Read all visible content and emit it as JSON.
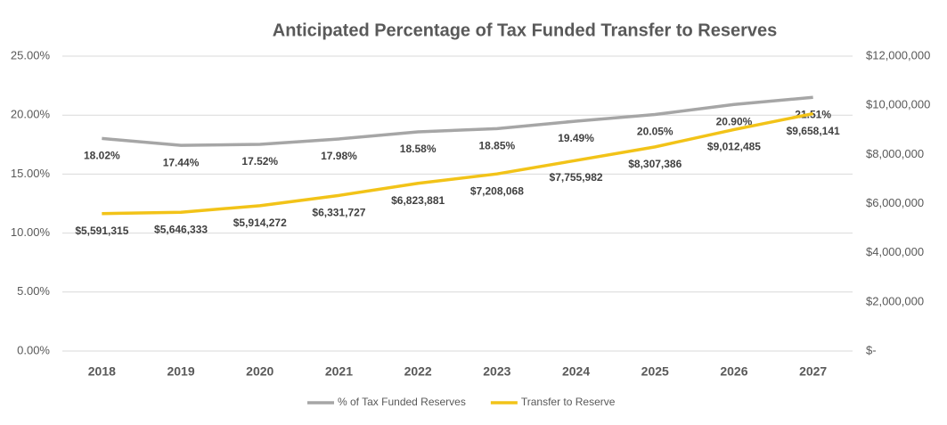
{
  "chart_data": {
    "type": "line",
    "title": "Anticipated Percentage of Tax Funded Transfer to Reserves",
    "categories": [
      "2018",
      "2019",
      "2020",
      "2021",
      "2022",
      "2023",
      "2024",
      "2025",
      "2026",
      "2027"
    ],
    "series": [
      {
        "name": "% of Tax Funded Reserves",
        "color": "#a6a6a6",
        "values": [
          18.02,
          17.44,
          17.52,
          17.98,
          18.58,
          18.85,
          19.49,
          20.05,
          20.9,
          21.51
        ],
        "value_labels": [
          "18.02%",
          "17.44%",
          "17.52%",
          "17.98%",
          "18.58%",
          "18.85%",
          "19.49%",
          "20.05%",
          "20.90%",
          "21.51%"
        ]
      },
      {
        "name": "Transfer to Reserve",
        "color": "#f2c318",
        "axis": "y2",
        "values": [
          5591315,
          5646333,
          5914272,
          6331727,
          6823881,
          7208068,
          7755982,
          8307386,
          9012485,
          9658141
        ],
        "value_labels": [
          "$5,591,315",
          "$5,646,333",
          "$5,914,272",
          "$6,331,727",
          "$6,823,881",
          "$7,208,068",
          "$7,755,982",
          "$8,307,386",
          "$9,012,485",
          "$9,658,141"
        ]
      }
    ],
    "ylim": [
      0,
      25
    ],
    "yticks": [
      {
        "value": 0,
        "label": "0.00%"
      },
      {
        "value": 5,
        "label": "5.00%"
      },
      {
        "value": 10,
        "label": "10.00%"
      },
      {
        "value": 15,
        "label": "15.00%"
      },
      {
        "value": 20,
        "label": "20.00%"
      },
      {
        "value": 25,
        "label": "25.00%"
      }
    ],
    "y2lim": [
      0,
      12000000
    ],
    "y2ticks": [
      {
        "value": 0,
        "label": "$-"
      },
      {
        "value": 2000000,
        "label": "$2,000,000"
      },
      {
        "value": 4000000,
        "label": "$4,000,000"
      },
      {
        "value": 6000000,
        "label": "$6,000,000"
      },
      {
        "value": 8000000,
        "label": "$8,000,000"
      },
      {
        "value": 10000000,
        "label": "$10,000,000"
      },
      {
        "value": 12000000,
        "label": "$12,000,000"
      }
    ],
    "grid": true,
    "legend": "bottom"
  }
}
